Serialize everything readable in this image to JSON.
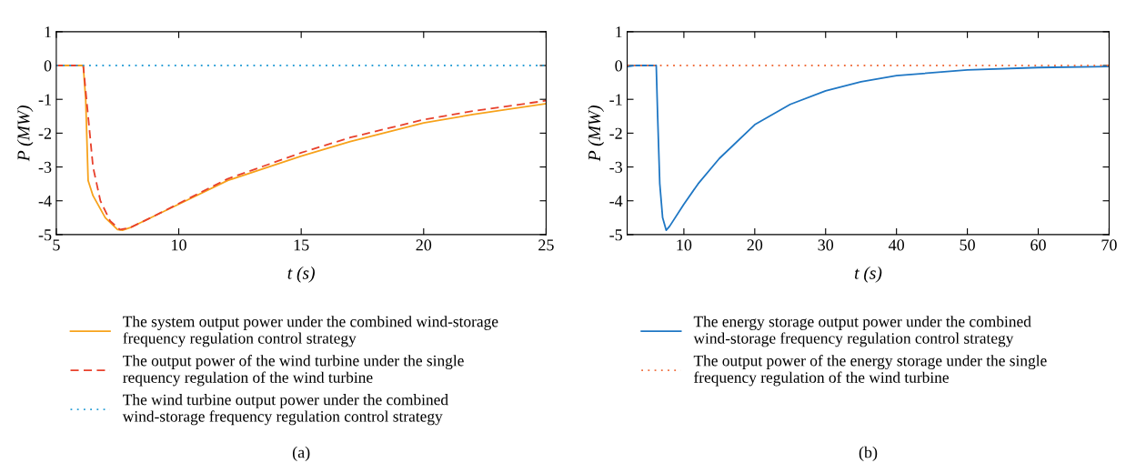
{
  "chart_data": [
    {
      "type": "line",
      "xlabel": "t (s)",
      "ylabel": "P (MW)",
      "xlim": [
        5,
        25
      ],
      "ylim": [
        -5,
        1
      ],
      "xticks": [
        5,
        10,
        15,
        20,
        25
      ],
      "yticks": [
        -5,
        -4,
        -3,
        -2,
        -1,
        0,
        1
      ],
      "grid": false,
      "legend": "bottom",
      "annotations": [
        "(a)"
      ],
      "series": [
        {
          "name": "The system output power under the combined wind-storage\nfrequency regulation control strategy",
          "color": "#f7a21b",
          "line_style": "solid",
          "x": [
            5,
            6.1,
            6.2,
            6.3,
            6.5,
            7,
            7.5,
            7.7,
            8,
            9,
            10,
            12,
            15,
            17,
            20,
            22,
            25
          ],
          "values": [
            0,
            0,
            -1,
            -3.4,
            -3.85,
            -4.5,
            -4.85,
            -4.87,
            -4.8,
            -4.45,
            -4.1,
            -3.4,
            -2.68,
            -2.25,
            -1.7,
            -1.45,
            -1.13
          ]
        },
        {
          "name": "The output power of the wind turbine under the single\nrequency regulation of the wind turbine",
          "color": "#e8412c",
          "line_style": "dashed",
          "x": [
            5,
            6.1,
            6.3,
            6.5,
            6.8,
            7.2,
            7.6,
            8,
            9,
            10,
            12,
            15,
            17,
            20,
            22,
            25
          ],
          "values": [
            0,
            0,
            -1.5,
            -3,
            -4,
            -4.6,
            -4.85,
            -4.8,
            -4.45,
            -4.08,
            -3.35,
            -2.58,
            -2.13,
            -1.6,
            -1.35,
            -1.04
          ]
        },
        {
          "name": "The wind turbine output power under the combined\nwind-storage frequency regulation control strategy",
          "color": "#2a9fd6",
          "line_style": "dotted",
          "x": [
            5,
            25
          ],
          "values": [
            0,
            0
          ]
        }
      ]
    },
    {
      "type": "line",
      "xlabel": "t (s)",
      "ylabel": "P (MW)",
      "xlim": [
        2,
        70
      ],
      "ylim": [
        -5,
        1
      ],
      "xticks": [
        10,
        20,
        30,
        40,
        50,
        60,
        70
      ],
      "yticks": [
        -5,
        -4,
        -3,
        -2,
        -1,
        0,
        1
      ],
      "grid": false,
      "legend": "bottom",
      "annotations": [
        "(b)"
      ],
      "series": [
        {
          "name": "The energy storage output power under the combined\nwind-storage frequency regulation control strategy",
          "color": "#1f77c4",
          "line_style": "solid",
          "x": [
            2,
            3,
            6.1,
            6.3,
            6.6,
            7,
            7.5,
            8,
            10,
            12,
            15,
            20,
            25,
            30,
            35,
            40,
            50,
            60,
            70
          ],
          "values": [
            -0.03,
            0,
            0,
            -1.5,
            -3.5,
            -4.5,
            -4.87,
            -4.75,
            -4.1,
            -3.5,
            -2.75,
            -1.75,
            -1.15,
            -0.75,
            -0.48,
            -0.3,
            -0.13,
            -0.06,
            -0.03
          ]
        },
        {
          "name": "The output power of the energy storage under the single\nfrequency regulation of the wind turbine",
          "color": "#f07040",
          "line_style": "dotted",
          "x": [
            2,
            70
          ],
          "values": [
            0,
            0
          ]
        }
      ]
    }
  ]
}
